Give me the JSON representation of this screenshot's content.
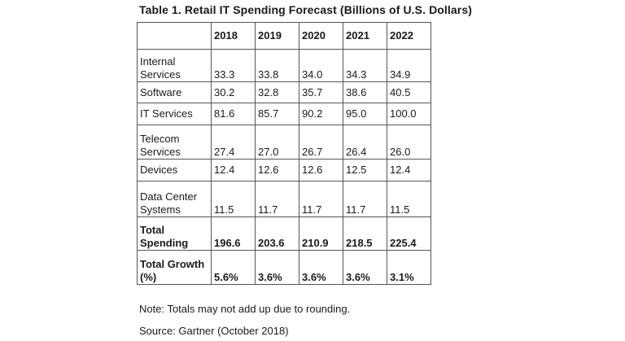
{
  "title": "Table 1. Retail IT Spending Forecast (Billions of U.S. Dollars)",
  "table": {
    "headers": [
      "",
      "2018",
      "2019",
      "2020",
      "2021",
      "2022"
    ],
    "rows": [
      {
        "label": "Internal Services",
        "values": [
          "33.3",
          "33.8",
          "34.0",
          "34.3",
          "34.9"
        ],
        "bold": false
      },
      {
        "label": "Software",
        "values": [
          "30.2",
          "32.8",
          "35.7",
          "38.6",
          "40.5"
        ],
        "bold": false
      },
      {
        "label": "IT Services",
        "values": [
          "81.6",
          "85.7",
          "90.2",
          "95.0",
          "100.0"
        ],
        "bold": false
      },
      {
        "label": "Telecom Services",
        "values": [
          "27.4",
          "27.0",
          "26.7",
          "26.4",
          "26.0"
        ],
        "bold": false
      },
      {
        "label": "Devices",
        "values": [
          "12.4",
          "12.6",
          "12.6",
          "12.5",
          "12.4"
        ],
        "bold": false
      },
      {
        "label": "Data Center Systems",
        "values": [
          "11.5",
          "11.7",
          "11.7",
          "11.7",
          "11.5"
        ],
        "bold": false
      },
      {
        "label": "Total Spending",
        "values": [
          "196.6",
          "203.6",
          "210.9",
          "218.5",
          "225.4"
        ],
        "bold": true
      },
      {
        "label": "Total Growth (%)",
        "values": [
          "5.6%",
          "3.6%",
          "3.6%",
          "3.6%",
          "3.1%"
        ],
        "bold": true
      }
    ]
  },
  "note": "Note: Totals may not add up due to rounding.",
  "source": "Source: Gartner (October 2018)"
}
